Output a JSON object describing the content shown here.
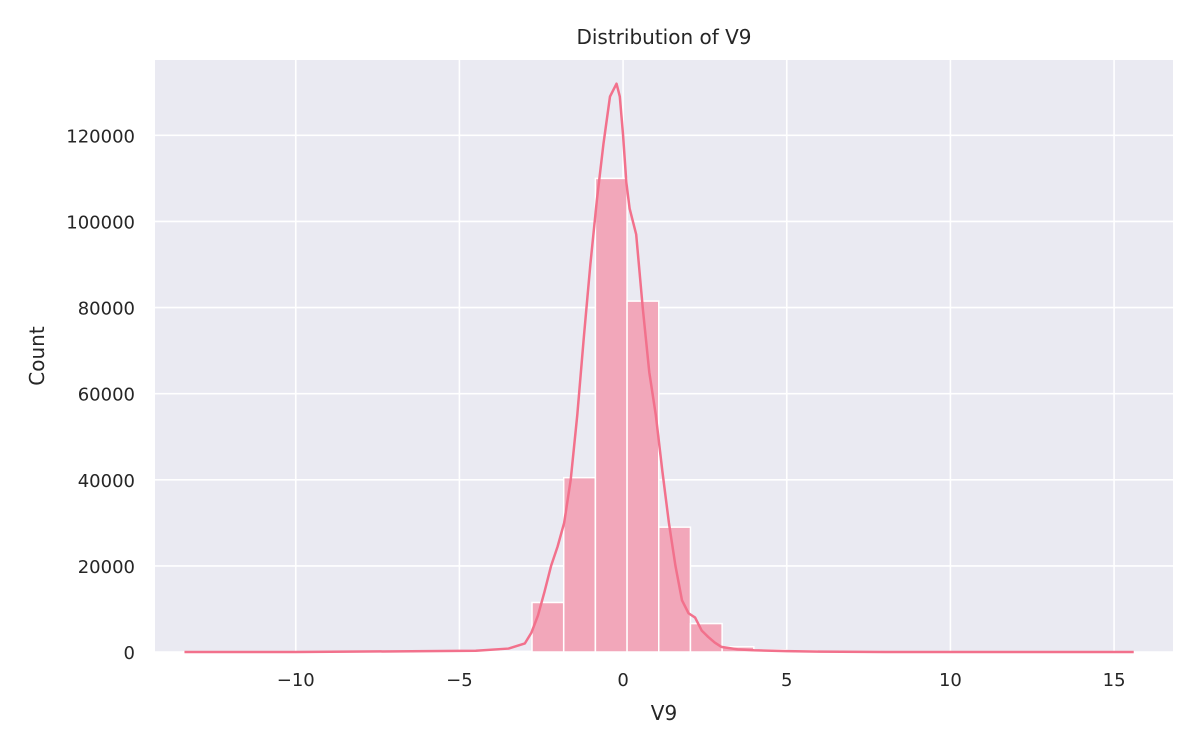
{
  "chart_data": {
    "type": "bar",
    "title": "Distribution of V9",
    "xlabel": "V9",
    "ylabel": "Count",
    "xlim": [
      -14.3,
      16.8
    ],
    "ylim": [
      0,
      137500
    ],
    "x_ticks": [
      -10,
      -5,
      0,
      5,
      10,
      15
    ],
    "x_tick_labels": [
      "−10",
      "−5",
      "0",
      "5",
      "10",
      "15"
    ],
    "y_ticks": [
      0,
      20000,
      40000,
      60000,
      80000,
      100000,
      120000
    ],
    "y_tick_labels": [
      "0",
      "20000",
      "40000",
      "60000",
      "80000",
      "100000",
      "120000"
    ],
    "grid": true,
    "colors": {
      "bars": "#f2a7ba",
      "kde": "#f2718c",
      "background": "#eaeaf2",
      "grid": "#ffffff"
    },
    "bins": {
      "edges_start": -13.43,
      "bin_width": 0.968,
      "counts": [
        30,
        30,
        30,
        30,
        40,
        40,
        40,
        50,
        60,
        100,
        150,
        11500,
        40500,
        110000,
        81500,
        29000,
        6600,
        1200,
        500,
        300,
        150,
        100,
        60,
        40,
        30,
        20,
        20,
        20,
        20,
        20
      ]
    },
    "kde": {
      "x": [
        -13.4,
        -10,
        -6,
        -4.5,
        -3.5,
        -3.0,
        -2.8,
        -2.6,
        -2.4,
        -2.2,
        -2.0,
        -1.8,
        -1.6,
        -1.4,
        -1.2,
        -1.0,
        -0.8,
        -0.6,
        -0.4,
        -0.2,
        -0.1,
        0.0,
        0.1,
        0.2,
        0.4,
        0.6,
        0.8,
        1.0,
        1.2,
        1.4,
        1.6,
        1.8,
        2.0,
        2.2,
        2.4,
        2.6,
        2.8,
        3.0,
        3.5,
        4.0,
        5.0,
        6.0,
        8.0,
        10.0,
        15.6
      ],
      "y": [
        0,
        0,
        200,
        300,
        800,
        2000,
        4500,
        8500,
        14000,
        20000,
        24500,
        30000,
        40000,
        55000,
        73000,
        90000,
        105000,
        118000,
        129000,
        132000,
        129000,
        120000,
        109000,
        103000,
        97000,
        80000,
        65000,
        55000,
        42000,
        30000,
        20000,
        12000,
        9000,
        8000,
        5000,
        3500,
        2200,
        1200,
        600,
        400,
        200,
        100,
        0,
        0,
        0
      ]
    }
  }
}
